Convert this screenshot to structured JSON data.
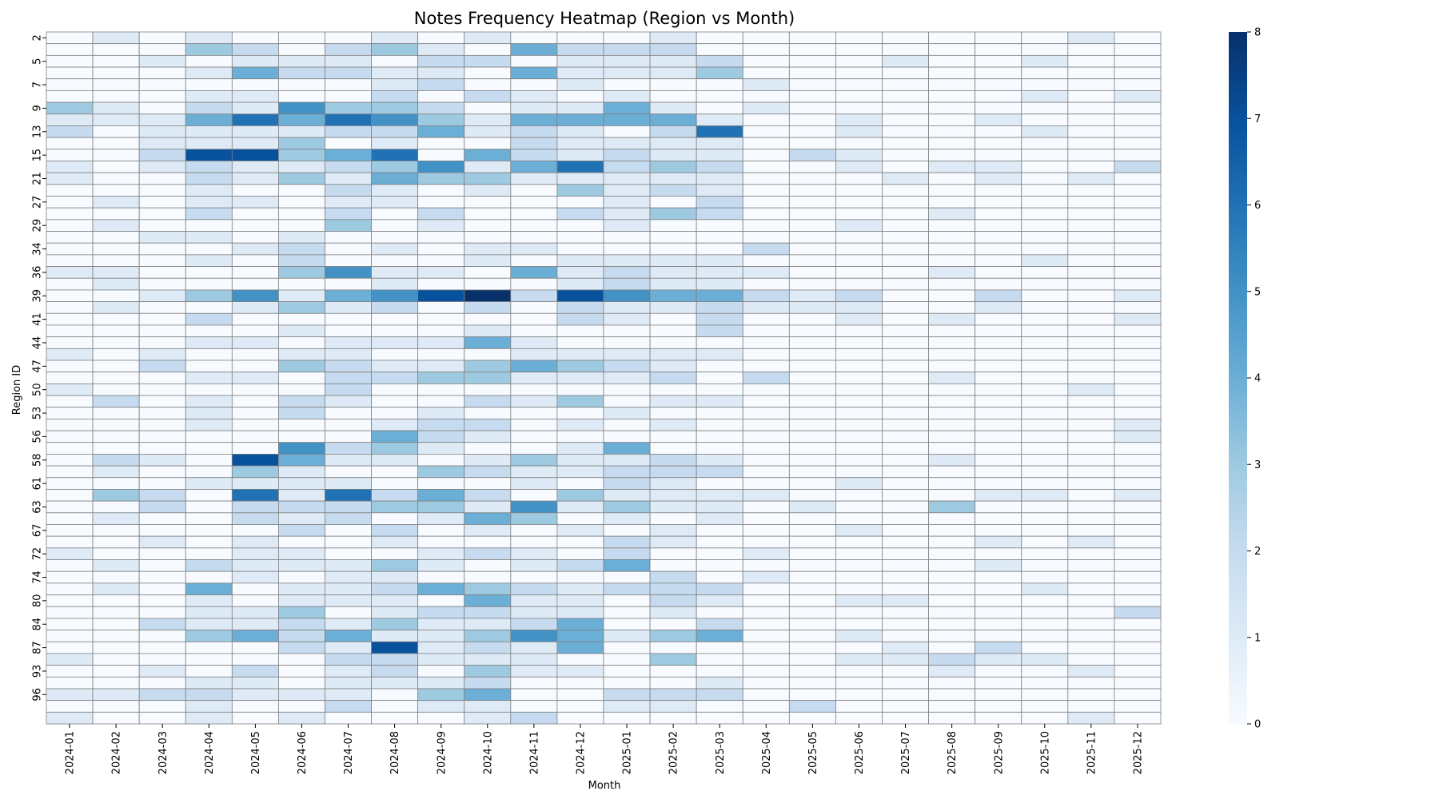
{
  "chart_data": {
    "type": "heatmap",
    "title": "Notes Frequency Heatmap (Region vs Month)",
    "xlabel": "Month",
    "ylabel": "Region ID",
    "colormap": "Blues",
    "colorbar": {
      "min": 0,
      "max": 8,
      "ticks": [
        "0",
        "1",
        "2",
        "3",
        "4",
        "5",
        "6",
        "7",
        "8"
      ]
    },
    "x_categories": [
      "2024-01",
      "2024-02",
      "2024-03",
      "2024-04",
      "2024-05",
      "2024-06",
      "2024-07",
      "2024-08",
      "2024-09",
      "2024-10",
      "2024-11",
      "2024-12",
      "2025-01",
      "2025-02",
      "2025-03",
      "2025-04",
      "2025-05",
      "2025-06",
      "2025-07",
      "2025-08",
      "2025-09",
      "2025-10",
      "2025-11",
      "2025-12"
    ],
    "y_tick_labels": [
      "2",
      "5",
      "7",
      "9",
      "13",
      "15",
      "21",
      "27",
      "29",
      "34",
      "36",
      "39",
      "41",
      "44",
      "47",
      "50",
      "53",
      "56",
      "58",
      "61",
      "63",
      "67",
      "72",
      "74",
      "80",
      "84",
      "87",
      "93",
      "96"
    ],
    "y_tick_rows": [
      0,
      2,
      4,
      6,
      8,
      10,
      12,
      14,
      16,
      18,
      20,
      22,
      24,
      26,
      28,
      30,
      32,
      34,
      36,
      38,
      40,
      42,
      44,
      46,
      48,
      50,
      52,
      54,
      56
    ],
    "rows": [
      [
        0,
        1,
        0,
        1,
        0,
        0,
        0,
        1,
        0,
        1,
        0,
        0,
        0,
        1,
        0,
        0,
        0,
        0,
        0,
        0,
        0,
        0,
        1,
        0
      ],
      [
        0,
        0,
        0,
        3,
        2,
        0,
        2,
        3,
        1,
        0,
        4,
        2,
        2,
        2,
        0,
        0,
        0,
        0,
        0,
        0,
        0,
        0,
        0,
        0
      ],
      [
        0,
        0,
        1,
        0,
        1,
        1,
        1,
        0,
        2,
        2,
        0,
        1,
        1,
        1,
        2,
        0,
        0,
        0,
        1,
        0,
        0,
        1,
        0,
        0
      ],
      [
        0,
        0,
        0,
        1,
        4,
        2,
        2,
        1,
        1,
        0,
        4,
        1,
        1,
        1,
        3,
        0,
        0,
        0,
        0,
        0,
        0,
        0,
        0,
        0
      ],
      [
        0,
        0,
        0,
        0,
        0,
        0,
        0,
        1,
        2,
        0,
        0,
        1,
        0,
        0,
        0,
        1,
        0,
        0,
        0,
        0,
        0,
        0,
        0,
        0
      ],
      [
        0,
        0,
        0,
        1,
        1,
        0,
        0,
        2,
        0,
        2,
        1,
        0,
        1,
        0,
        0,
        0,
        0,
        0,
        0,
        0,
        0,
        1,
        0,
        1
      ],
      [
        3,
        1,
        0,
        2,
        1,
        5,
        3,
        3,
        2,
        0,
        1,
        1,
        4,
        1,
        0,
        1,
        0,
        0,
        0,
        0,
        0,
        0,
        0,
        0
      ],
      [
        1,
        1,
        1,
        4,
        6,
        4,
        6,
        5,
        3,
        1,
        4,
        4,
        4,
        4,
        1,
        0,
        0,
        1,
        0,
        0,
        1,
        0,
        0,
        0
      ],
      [
        2,
        0,
        1,
        1,
        1,
        1,
        2,
        2,
        4,
        1,
        2,
        1,
        0,
        2,
        6,
        0,
        0,
        1,
        0,
        0,
        0,
        1,
        0,
        0
      ],
      [
        0,
        0,
        1,
        1,
        1,
        3,
        0,
        1,
        0,
        0,
        2,
        1,
        1,
        1,
        1,
        0,
        0,
        0,
        0,
        0,
        0,
        0,
        0,
        0
      ],
      [
        0,
        0,
        2,
        7,
        7,
        3,
        4,
        6,
        0,
        4,
        2,
        1,
        2,
        1,
        1,
        0,
        2,
        1,
        0,
        0,
        0,
        0,
        0,
        0
      ],
      [
        1,
        0,
        1,
        2,
        1,
        1,
        2,
        3,
        5,
        1,
        4,
        6,
        2,
        3,
        2,
        0,
        0,
        1,
        0,
        1,
        1,
        0,
        0,
        2
      ],
      [
        1,
        0,
        0,
        2,
        1,
        3,
        1,
        4,
        3,
        3,
        1,
        1,
        1,
        1,
        1,
        0,
        0,
        0,
        1,
        0,
        1,
        0,
        1,
        0
      ],
      [
        0,
        0,
        0,
        1,
        0,
        0,
        2,
        1,
        0,
        1,
        0,
        3,
        1,
        2,
        1,
        0,
        0,
        0,
        0,
        0,
        0,
        0,
        0,
        0
      ],
      [
        0,
        1,
        0,
        1,
        1,
        0,
        1,
        1,
        0,
        0,
        0,
        0,
        1,
        0,
        2,
        0,
        0,
        0,
        0,
        0,
        0,
        0,
        0,
        0
      ],
      [
        0,
        0,
        0,
        2,
        0,
        0,
        2,
        0,
        2,
        0,
        0,
        2,
        1,
        3,
        2,
        0,
        0,
        0,
        0,
        1,
        0,
        0,
        0,
        0
      ],
      [
        0,
        1,
        0,
        0,
        0,
        0,
        3,
        0,
        1,
        0,
        0,
        0,
        1,
        0,
        0,
        0,
        0,
        1,
        0,
        0,
        0,
        0,
        0,
        0
      ],
      [
        0,
        0,
        1,
        1,
        0,
        1,
        0,
        0,
        0,
        0,
        0,
        0,
        0,
        0,
        0,
        0,
        0,
        0,
        0,
        0,
        0,
        0,
        0,
        0
      ],
      [
        0,
        0,
        0,
        0,
        1,
        2,
        0,
        1,
        0,
        1,
        1,
        0,
        0,
        0,
        0,
        2,
        0,
        0,
        0,
        0,
        0,
        0,
        0,
        0
      ],
      [
        0,
        0,
        0,
        1,
        0,
        2,
        0,
        0,
        0,
        1,
        0,
        1,
        1,
        1,
        1,
        0,
        0,
        0,
        0,
        0,
        0,
        1,
        0,
        0
      ],
      [
        1,
        1,
        0,
        0,
        0,
        3,
        5,
        1,
        1,
        0,
        4,
        1,
        2,
        1,
        1,
        1,
        0,
        0,
        0,
        1,
        0,
        0,
        0,
        0
      ],
      [
        0,
        1,
        0,
        0,
        0,
        0,
        0,
        1,
        0,
        0,
        0,
        1,
        2,
        1,
        1,
        0,
        0,
        0,
        0,
        0,
        0,
        0,
        0,
        0
      ],
      [
        0,
        0,
        1,
        3,
        5,
        1,
        4,
        5,
        7,
        8,
        2,
        7,
        5,
        4,
        4,
        2,
        1,
        2,
        0,
        0,
        2,
        0,
        0,
        1
      ],
      [
        0,
        1,
        0,
        0,
        1,
        3,
        1,
        2,
        0,
        2,
        0,
        2,
        1,
        1,
        2,
        1,
        1,
        1,
        0,
        0,
        1,
        0,
        0,
        0
      ],
      [
        0,
        0,
        0,
        2,
        0,
        0,
        0,
        0,
        0,
        0,
        0,
        2,
        1,
        0,
        2,
        0,
        0,
        1,
        0,
        1,
        0,
        0,
        0,
        1
      ],
      [
        0,
        0,
        0,
        0,
        0,
        1,
        0,
        0,
        0,
        1,
        0,
        0,
        0,
        0,
        2,
        0,
        0,
        0,
        0,
        0,
        0,
        0,
        0,
        0
      ],
      [
        0,
        0,
        0,
        1,
        1,
        0,
        1,
        1,
        1,
        4,
        1,
        0,
        0,
        0,
        0,
        0,
        0,
        0,
        0,
        0,
        0,
        0,
        0,
        0
      ],
      [
        1,
        0,
        1,
        0,
        0,
        1,
        1,
        0,
        0,
        0,
        1,
        1,
        1,
        1,
        1,
        0,
        0,
        0,
        0,
        0,
        0,
        0,
        0,
        0
      ],
      [
        0,
        0,
        2,
        0,
        0,
        3,
        2,
        1,
        1,
        3,
        4,
        3,
        2,
        1,
        0,
        0,
        0,
        0,
        0,
        0,
        0,
        0,
        0,
        0
      ],
      [
        0,
        0,
        0,
        1,
        1,
        0,
        2,
        2,
        3,
        3,
        1,
        1,
        1,
        2,
        0,
        2,
        0,
        0,
        0,
        1,
        0,
        0,
        0,
        0
      ],
      [
        1,
        0,
        0,
        0,
        0,
        0,
        2,
        0,
        0,
        0,
        0,
        0,
        0,
        0,
        0,
        0,
        0,
        0,
        0,
        0,
        0,
        0,
        1,
        0
      ],
      [
        0,
        2,
        0,
        1,
        0,
        2,
        1,
        0,
        0,
        2,
        1,
        3,
        0,
        1,
        1,
        0,
        0,
        0,
        0,
        0,
        0,
        0,
        0,
        0
      ],
      [
        0,
        0,
        0,
        1,
        0,
        2,
        0,
        0,
        1,
        0,
        0,
        0,
        1,
        0,
        0,
        0,
        0,
        0,
        0,
        0,
        0,
        0,
        0,
        0
      ],
      [
        0,
        0,
        0,
        1,
        0,
        0,
        0,
        1,
        2,
        2,
        0,
        1,
        0,
        1,
        0,
        0,
        0,
        0,
        0,
        0,
        0,
        0,
        0,
        1
      ],
      [
        0,
        0,
        0,
        0,
        0,
        0,
        0,
        4,
        2,
        1,
        0,
        0,
        0,
        0,
        0,
        0,
        0,
        0,
        0,
        0,
        0,
        0,
        0,
        1
      ],
      [
        0,
        0,
        0,
        0,
        0,
        5,
        2,
        3,
        1,
        0,
        0,
        1,
        4,
        0,
        0,
        0,
        0,
        0,
        0,
        0,
        0,
        0,
        0,
        0
      ],
      [
        0,
        2,
        1,
        0,
        7,
        4,
        1,
        1,
        0,
        1,
        3,
        1,
        1,
        2,
        1,
        0,
        0,
        0,
        0,
        1,
        0,
        0,
        0,
        0
      ],
      [
        0,
        1,
        0,
        0,
        3,
        1,
        0,
        0,
        3,
        2,
        1,
        1,
        2,
        2,
        2,
        0,
        0,
        0,
        0,
        0,
        0,
        0,
        0,
        0
      ],
      [
        0,
        0,
        0,
        1,
        1,
        1,
        1,
        0,
        0,
        0,
        1,
        0,
        2,
        1,
        0,
        0,
        0,
        1,
        0,
        0,
        0,
        0,
        0,
        0
      ],
      [
        0,
        3,
        2,
        0,
        6,
        1,
        6,
        2,
        4,
        2,
        0,
        3,
        1,
        1,
        1,
        1,
        0,
        0,
        0,
        0,
        1,
        1,
        0,
        1
      ],
      [
        0,
        0,
        2,
        0,
        2,
        2,
        2,
        3,
        3,
        1,
        5,
        1,
        3,
        1,
        1,
        0,
        1,
        0,
        0,
        3,
        0,
        0,
        0,
        0
      ],
      [
        0,
        1,
        0,
        0,
        2,
        1,
        2,
        0,
        1,
        4,
        3,
        0,
        1,
        0,
        1,
        0,
        0,
        0,
        0,
        0,
        0,
        0,
        0,
        0
      ],
      [
        0,
        0,
        0,
        0,
        0,
        2,
        0,
        2,
        0,
        1,
        0,
        1,
        0,
        1,
        0,
        0,
        0,
        1,
        0,
        0,
        0,
        0,
        0,
        0
      ],
      [
        0,
        0,
        1,
        0,
        1,
        0,
        0,
        1,
        0,
        0,
        0,
        0,
        2,
        1,
        0,
        0,
        0,
        0,
        0,
        0,
        1,
        0,
        1,
        0
      ],
      [
        1,
        0,
        0,
        0,
        1,
        1,
        0,
        0,
        1,
        2,
        1,
        0,
        2,
        0,
        0,
        1,
        0,
        0,
        0,
        0,
        0,
        0,
        0,
        0
      ],
      [
        0,
        1,
        0,
        2,
        1,
        1,
        1,
        3,
        1,
        0,
        1,
        2,
        4,
        0,
        0,
        0,
        0,
        0,
        0,
        0,
        1,
        0,
        0,
        0
      ],
      [
        0,
        0,
        0,
        0,
        1,
        0,
        1,
        1,
        0,
        0,
        0,
        0,
        0,
        2,
        0,
        1,
        0,
        0,
        0,
        0,
        0,
        0,
        0,
        0
      ],
      [
        0,
        1,
        0,
        4,
        0,
        1,
        1,
        2,
        4,
        3,
        2,
        1,
        2,
        2,
        2,
        0,
        0,
        0,
        0,
        0,
        0,
        1,
        0,
        0
      ],
      [
        0,
        0,
        0,
        1,
        0,
        1,
        1,
        1,
        0,
        4,
        1,
        1,
        0,
        2,
        1,
        0,
        0,
        1,
        1,
        0,
        0,
        0,
        0,
        0
      ],
      [
        0,
        0,
        0,
        1,
        1,
        3,
        0,
        1,
        2,
        2,
        1,
        1,
        0,
        1,
        0,
        0,
        0,
        0,
        0,
        0,
        0,
        0,
        0,
        2
      ],
      [
        0,
        0,
        2,
        1,
        1,
        2,
        1,
        3,
        1,
        1,
        2,
        4,
        0,
        0,
        2,
        0,
        0,
        0,
        0,
        0,
        0,
        0,
        0,
        0
      ],
      [
        0,
        0,
        0,
        3,
        4,
        2,
        4,
        1,
        1,
        3,
        5,
        4,
        1,
        3,
        4,
        0,
        0,
        1,
        0,
        0,
        0,
        0,
        0,
        0
      ],
      [
        0,
        0,
        0,
        0,
        0,
        2,
        1,
        7,
        1,
        2,
        1,
        4,
        0,
        0,
        0,
        0,
        0,
        0,
        1,
        0,
        2,
        0,
        0,
        0
      ],
      [
        1,
        0,
        0,
        0,
        0,
        0,
        2,
        2,
        1,
        1,
        1,
        0,
        0,
        3,
        0,
        0,
        0,
        1,
        1,
        2,
        1,
        1,
        0,
        0
      ],
      [
        0,
        0,
        1,
        0,
        2,
        0,
        1,
        2,
        0,
        3,
        1,
        1,
        0,
        0,
        0,
        0,
        0,
        0,
        0,
        1,
        0,
        0,
        1,
        0
      ],
      [
        0,
        0,
        0,
        1,
        1,
        0,
        1,
        1,
        1,
        2,
        0,
        0,
        0,
        0,
        1,
        0,
        0,
        0,
        0,
        0,
        0,
        0,
        0,
        0
      ],
      [
        1,
        1,
        2,
        2,
        1,
        1,
        1,
        0,
        3,
        4,
        0,
        0,
        2,
        2,
        2,
        0,
        0,
        0,
        0,
        0,
        0,
        0,
        0,
        0
      ],
      [
        0,
        0,
        0,
        1,
        0,
        0,
        2,
        0,
        1,
        1,
        0,
        0,
        1,
        1,
        0,
        0,
        2,
        0,
        0,
        0,
        0,
        0,
        0,
        0
      ],
      [
        1,
        0,
        0,
        1,
        0,
        1,
        0,
        0,
        0,
        1,
        2,
        0,
        0,
        0,
        0,
        0,
        0,
        0,
        0,
        0,
        0,
        0,
        1,
        0
      ]
    ]
  }
}
